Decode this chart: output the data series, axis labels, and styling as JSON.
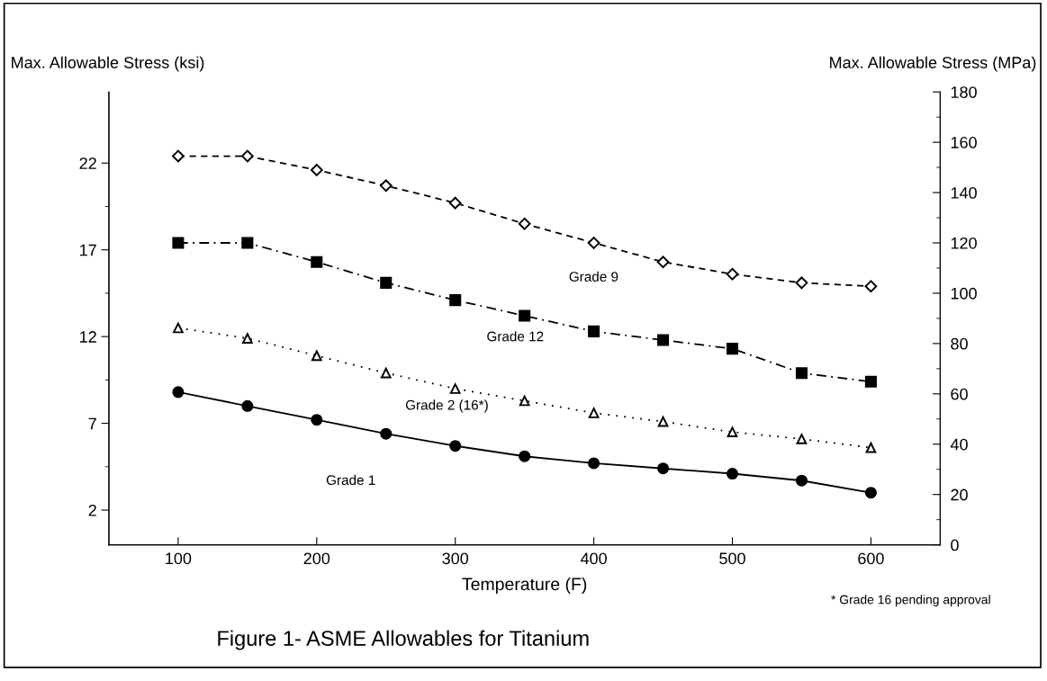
{
  "chart_data": {
    "type": "line",
    "title": "Figure 1- ASME Allowables for Titanium",
    "xlabel": "Temperature (F)",
    "ylabel": "Max. Allowable Stress (ksi)",
    "y2label": "Max. Allowable Stress (MPa)",
    "annotations": [
      "* Grade 16 pending approval"
    ],
    "x": [
      100,
      150,
      200,
      250,
      300,
      350,
      400,
      450,
      500,
      550,
      600
    ],
    "series": [
      {
        "name": "Grade 9",
        "color": "#000000",
        "marker": "diamond",
        "line_style": "dashed",
        "values": [
          22.4,
          22.4,
          21.6,
          20.7,
          19.7,
          18.5,
          17.4,
          16.3,
          15.6,
          15.1,
          14.9
        ]
      },
      {
        "name": "Grade 12",
        "color": "#000000",
        "marker": "square",
        "line_style": "dashdot",
        "values": [
          17.4,
          17.4,
          16.3,
          15.1,
          14.1,
          13.2,
          12.3,
          11.8,
          11.3,
          9.9,
          9.4
        ]
      },
      {
        "name": "Grade 2 (16*)",
        "color": "#000000",
        "marker": "triangle",
        "line_style": "dotted",
        "values": [
          12.5,
          11.9,
          10.9,
          9.9,
          9.0,
          8.3,
          7.6,
          7.1,
          6.5,
          6.1,
          5.6
        ]
      },
      {
        "name": "Grade 1",
        "color": "#000000",
        "marker": "circle",
        "line_style": "solid",
        "values": [
          8.8,
          8.0,
          7.2,
          6.4,
          5.7,
          5.1,
          4.7,
          4.4,
          4.1,
          3.7,
          3.0
        ]
      }
    ],
    "xlim": [
      50,
      650
    ],
    "xticks": [
      100,
      200,
      300,
      400,
      500,
      600
    ],
    "ylim": [
      0,
      26.1
    ],
    "yticks": [
      2,
      7,
      12,
      17,
      22
    ],
    "y2lim": [
      0,
      180
    ],
    "y2ticks": [
      0,
      20,
      40,
      60,
      80,
      100,
      120,
      140,
      160,
      180
    ],
    "grid": false,
    "legend": false
  }
}
